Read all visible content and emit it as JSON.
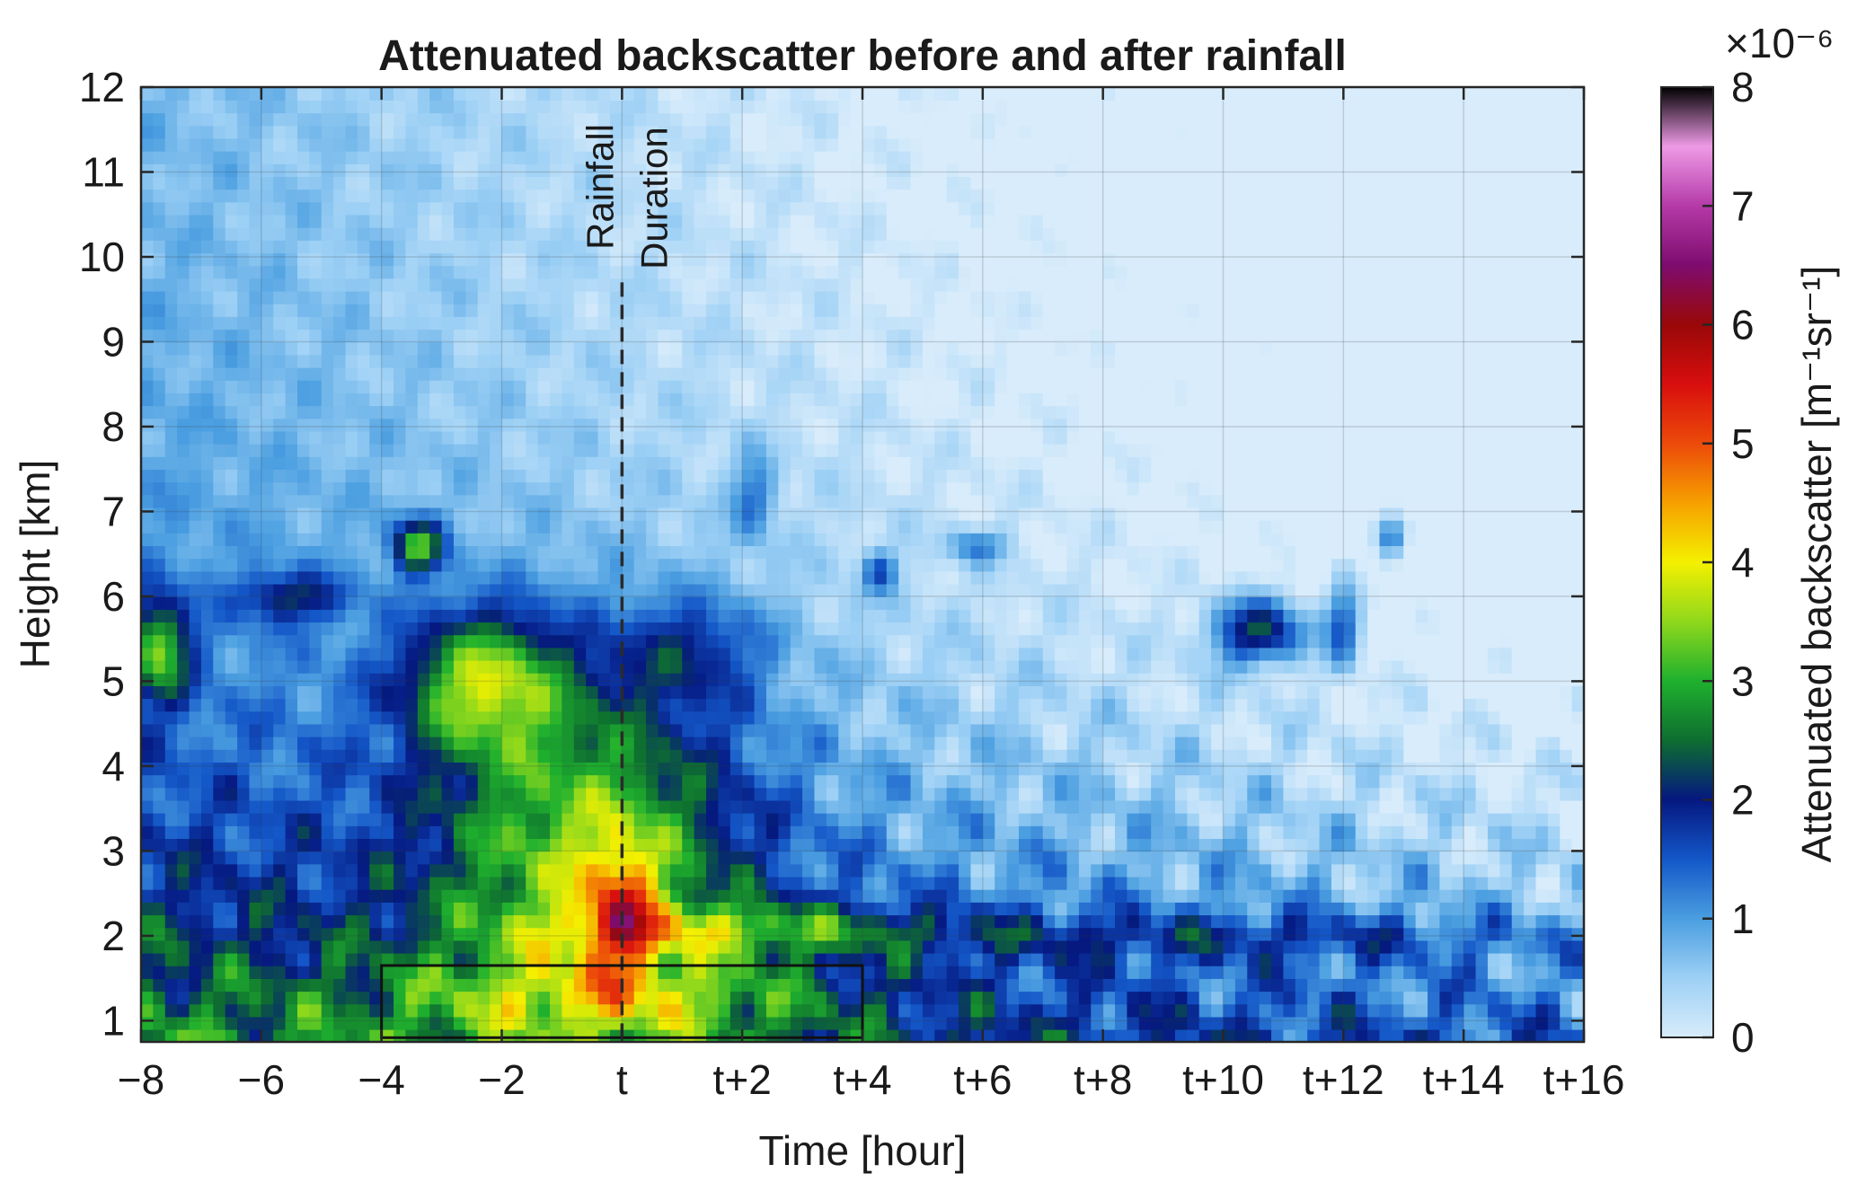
{
  "chart_data": {
    "type": "heatmap",
    "title": "Attenuated backscatter before and after rainfall",
    "xlabel": "Time [hour]",
    "ylabel": "Height [km]",
    "xlim": [
      -8,
      16
    ],
    "ylim": [
      0.75,
      12
    ],
    "x_ticks": [
      -8,
      -6,
      -4,
      -2,
      0,
      2,
      4,
      6,
      8,
      10,
      12,
      14,
      16
    ],
    "x_tick_labels": [
      "−8",
      "−6",
      "−4",
      "−2",
      "t",
      "t+2",
      "t+4",
      "t+6",
      "t+8",
      "t+10",
      "t+12",
      "t+14",
      "t+16"
    ],
    "y_ticks": [
      1,
      2,
      3,
      4,
      5,
      6,
      7,
      8,
      9,
      10,
      11,
      12
    ],
    "y_tick_labels": [
      "1",
      "2",
      "3",
      "4",
      "5",
      "6",
      "7",
      "8",
      "9",
      "10",
      "11",
      "12"
    ],
    "grid": true,
    "colorbar": {
      "label": "Attenuated backscatter [m⁻¹sr⁻¹]",
      "exponent_label": "×10⁻⁶",
      "range": [
        0,
        8
      ],
      "ticks": [
        0,
        1,
        2,
        3,
        4,
        5,
        6,
        7,
        8
      ],
      "tick_labels": [
        "0",
        "1",
        "2",
        "3",
        "4",
        "5",
        "6",
        "7",
        "8"
      ],
      "colors": [
        "#d8ecfb",
        "#9dd0f5",
        "#4a9ee0",
        "#1457c8",
        "#051880",
        "#0e6e30",
        "#1fb02e",
        "#8fd81c",
        "#f4f000",
        "#f6a000",
        "#ec4a0a",
        "#d80e0e",
        "#990808",
        "#7e0c6e",
        "#b43aa8",
        "#ee9ae6",
        "#000000"
      ]
    },
    "annotations": {
      "rainfall_line_x": 0,
      "rainfall_line_top_km": 9.7,
      "text_1": "Rainfall",
      "text_2": "Duration",
      "box_x_range": [
        -4,
        4
      ],
      "box_y_range": [
        0.8,
        1.65
      ]
    },
    "features": [
      {
        "x": 0,
        "y": 1.3,
        "sx": 3.5,
        "sy": 0.5,
        "v": 1.2
      },
      {
        "x": -0.5,
        "y": 3.2,
        "sx": 2.5,
        "sy": 2.0,
        "v": 2.2
      },
      {
        "x": -2.3,
        "y": 5.0,
        "sx": 1.3,
        "sy": 0.8,
        "v": 2.4
      },
      {
        "x": 0,
        "y": 2.3,
        "sx": 0.6,
        "sy": 0.8,
        "v": 2.0
      },
      {
        "x": -7.7,
        "y": 5.4,
        "sx": 0.5,
        "sy": 0.6,
        "v": 2.2
      },
      {
        "x": -3.4,
        "y": 6.6,
        "sx": 0.4,
        "sy": 0.3,
        "v": 2.5
      },
      {
        "x": 10.6,
        "y": 5.6,
        "sx": 0.8,
        "sy": 0.4,
        "v": 2.2
      },
      {
        "x": 12.0,
        "y": 5.7,
        "sx": 0.3,
        "sy": 0.5,
        "v": 1.5
      },
      {
        "x": 12.8,
        "y": 6.7,
        "sx": 0.25,
        "sy": 0.25,
        "v": 1.6
      },
      {
        "x": 4.3,
        "y": 6.3,
        "sx": 0.3,
        "sy": 0.25,
        "v": 1.2
      },
      {
        "x": 5.9,
        "y": 6.6,
        "sx": 0.5,
        "sy": 0.2,
        "v": 1.0
      },
      {
        "x": 2.2,
        "y": 7.2,
        "sx": 0.35,
        "sy": 0.5,
        "v": 1.0
      },
      {
        "x": 2,
        "y": 2.1,
        "sx": 3.2,
        "sy": 0.3,
        "v": 1.3
      },
      {
        "x": 10,
        "y": 2.0,
        "sx": 6,
        "sy": 0.3,
        "v": 0.8
      },
      {
        "x": -5.5,
        "y": 6.0,
        "sx": 0.9,
        "sy": 0.3,
        "v": 1.3
      },
      {
        "x": 1.2,
        "y": 5.4,
        "sx": 1.2,
        "sy": 0.6,
        "v": 1.0
      }
    ]
  }
}
